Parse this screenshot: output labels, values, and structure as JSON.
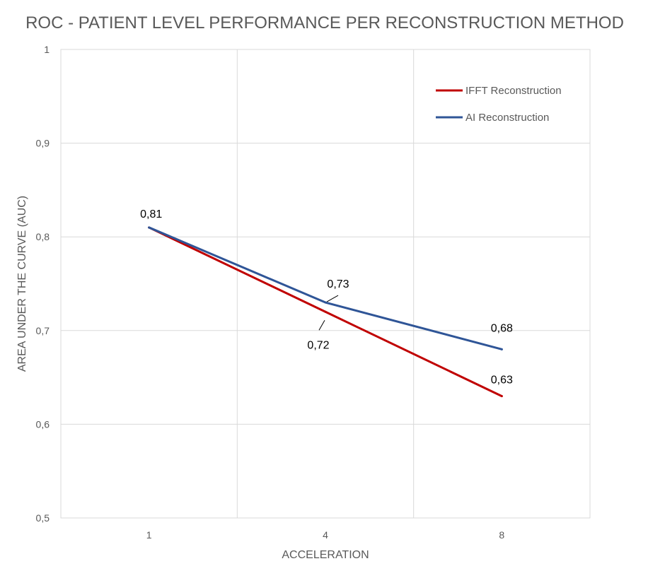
{
  "chart_data": {
    "type": "line",
    "title": "ROC - PATIENT LEVEL PERFORMANCE PER RECONSTRUCTION METHOD",
    "xlabel": "ACCELERATION",
    "ylabel": "AREA UNDER THE CURVE (AUC)",
    "categories": [
      "1",
      "4",
      "8"
    ],
    "ylim": [
      0.5,
      1
    ],
    "yticks": [
      0.5,
      0.6,
      0.7,
      0.8,
      0.9,
      1
    ],
    "ytick_labels": [
      "0,5",
      "0,6",
      "0,7",
      "0,8",
      "0,9",
      "1"
    ],
    "grid": true,
    "legend_position": "top-right",
    "series": [
      {
        "name": "IFFT Reconstruction",
        "color": "#c00000",
        "values": [
          0.81,
          0.72,
          0.63
        ],
        "labels": [
          "",
          "0,72",
          "0,63"
        ]
      },
      {
        "name": "AI Reconstruction",
        "color": "#2f5597",
        "values": [
          0.81,
          0.73,
          0.68
        ],
        "labels": [
          "0,81",
          "0,73",
          "0,68"
        ]
      }
    ]
  }
}
